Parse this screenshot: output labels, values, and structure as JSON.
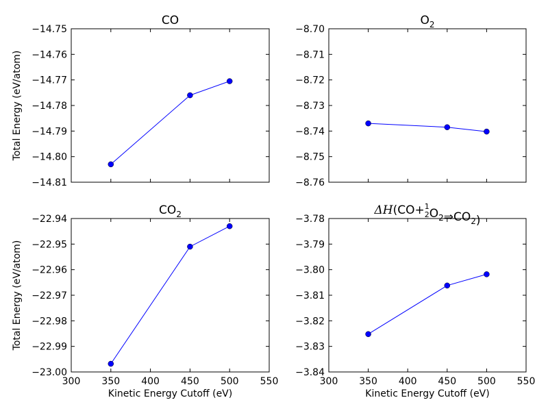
{
  "chart_data": [
    {
      "type": "line",
      "title": "CO",
      "ylabel": "Total Energy (eV/atom)",
      "xlabel": "",
      "xlim": [
        300,
        550
      ],
      "ylim": [
        -14.81,
        -14.75
      ],
      "xticks": [
        "",
        "",
        "",
        "",
        "",
        ""
      ],
      "yticks": [
        "−14.81",
        "−14.80",
        "−14.79",
        "−14.78",
        "−14.77",
        "−14.76",
        "−14.75"
      ],
      "x": [
        350,
        450,
        500
      ],
      "y": [
        -14.803,
        -14.776,
        -14.7705
      ],
      "color": "#0000ff"
    },
    {
      "type": "line",
      "title": "O2",
      "title_parts": [
        {
          "text": "O",
          "sub": "2"
        }
      ],
      "ylabel": "",
      "xlabel": "",
      "xlim": [
        300,
        550
      ],
      "ylim": [
        -8.76,
        -8.7
      ],
      "xticks": [
        "",
        "",
        "",
        "",
        "",
        ""
      ],
      "yticks": [
        "−8.76",
        "−8.75",
        "−8.74",
        "−8.73",
        "−8.72",
        "−8.71",
        "−8.70"
      ],
      "x": [
        350,
        450,
        500
      ],
      "y": [
        -8.737,
        -8.7385,
        -8.7402
      ],
      "color": "#0000ff"
    },
    {
      "type": "line",
      "title": "CO2",
      "title_parts": [
        {
          "text": "CO",
          "sub": "2"
        }
      ],
      "ylabel": "Total Energy (eV/atom)",
      "xlabel": "Kinetic Energy Cutoff (eV)",
      "xlim": [
        300,
        550
      ],
      "ylim": [
        -23.0,
        -22.94
      ],
      "xticks": [
        "300",
        "350",
        "400",
        "450",
        "500",
        "550"
      ],
      "yticks": [
        "−23.00",
        "−22.99",
        "−22.98",
        "−22.97",
        "−22.96",
        "−22.95",
        "−22.94"
      ],
      "x": [
        350,
        450,
        500
      ],
      "y": [
        -22.9968,
        -22.951,
        -22.943
      ],
      "color": "#0000ff"
    },
    {
      "type": "line",
      "title": "ΔH(CO + ½O2 ⇒ CO2)",
      "title_parts": [
        {
          "text": "ΔH",
          "italic": true
        },
        {
          "text": "(CO"
        },
        {
          "text": "+"
        },
        {
          "frac": [
            "1",
            "2"
          ]
        },
        {
          "text": "O",
          "sub": "2"
        },
        {
          "text": "⇒"
        },
        {
          "text": "CO",
          "sub": "2"
        },
        {
          "text": ")"
        }
      ],
      "ylabel": "",
      "xlabel": "Kinetic Energy Cutoff (eV)",
      "xlim": [
        300,
        550
      ],
      "ylim": [
        -3.84,
        -3.78
      ],
      "xticks": [
        "300",
        "350",
        "400",
        "450",
        "500",
        "550"
      ],
      "yticks": [
        "−3.84",
        "−3.83",
        "−3.82",
        "−3.81",
        "−3.80",
        "−3.79",
        "−3.78"
      ],
      "x": [
        350,
        450,
        500
      ],
      "y": [
        -3.8252,
        -3.8062,
        -3.8018
      ],
      "color": "#0000ff"
    }
  ]
}
